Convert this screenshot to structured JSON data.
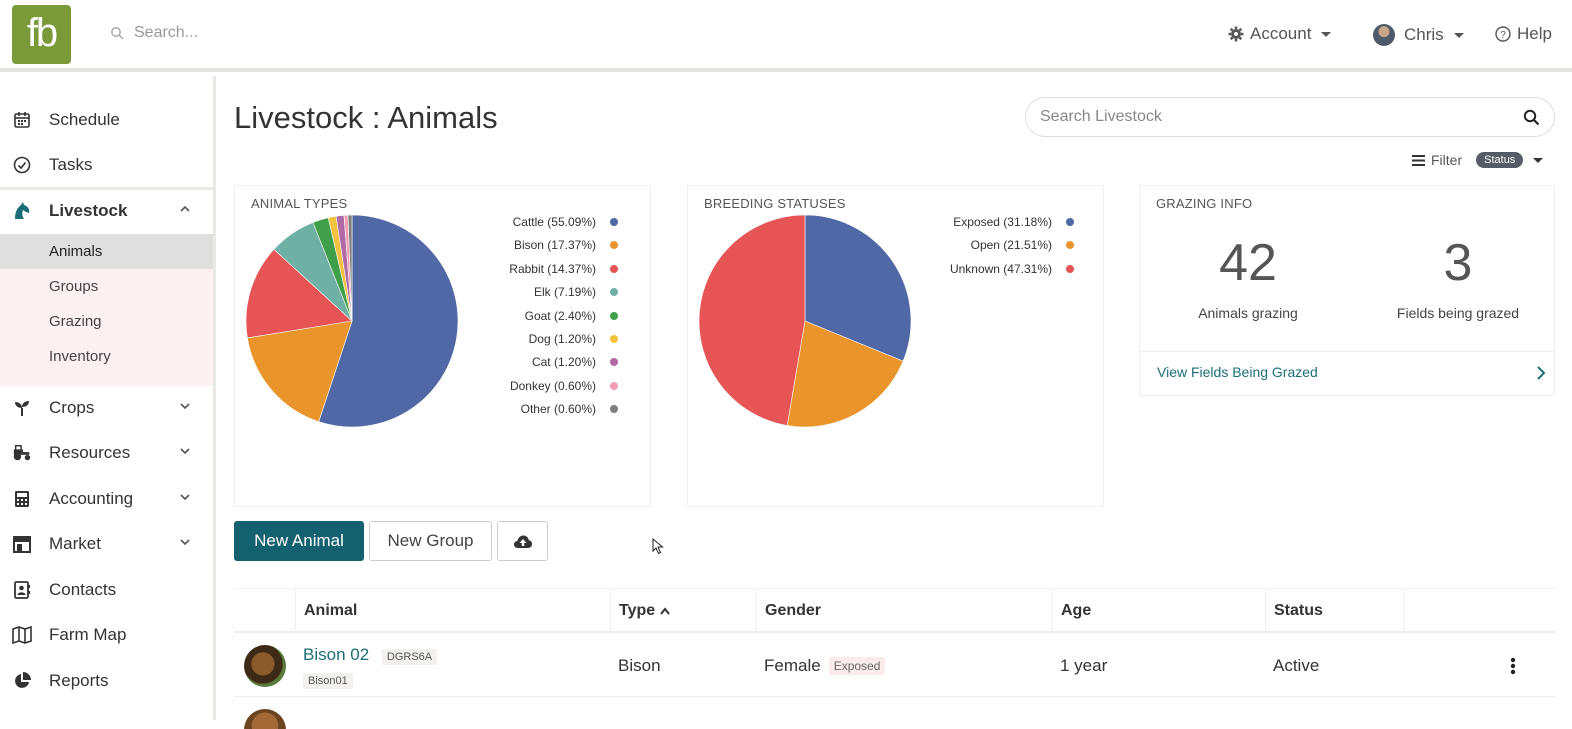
{
  "brand": {
    "logo_text": "fb",
    "accent": "#7a9a3a"
  },
  "topbar": {
    "search_placeholder": "Search...",
    "account_label": "Account",
    "user_label": "Chris",
    "help_label": "Help"
  },
  "sidebar": {
    "items": [
      {
        "label": "Schedule",
        "icon": "calendar-icon"
      },
      {
        "label": "Tasks",
        "icon": "check-circle-icon"
      },
      {
        "label": "Livestock",
        "icon": "horse-head-icon"
      },
      {
        "label": "Crops",
        "icon": "seedling-icon"
      },
      {
        "label": "Resources",
        "icon": "tractor-icon"
      },
      {
        "label": "Accounting",
        "icon": "calculator-icon"
      },
      {
        "label": "Market",
        "icon": "store-icon"
      },
      {
        "label": "Contacts",
        "icon": "address-book-icon"
      },
      {
        "label": "Farm Map",
        "icon": "map-icon"
      },
      {
        "label": "Reports",
        "icon": "pie-chart-icon"
      }
    ],
    "livestock_sub": [
      "Animals",
      "Groups",
      "Grazing",
      "Inventory"
    ]
  },
  "page": {
    "title": "Livestock : Animals",
    "search_placeholder": "Search Livestock",
    "filter_label": "Filter",
    "filter_badge": "Status"
  },
  "chart_data": [
    {
      "type": "pie",
      "title": "ANIMAL TYPES",
      "categories": [
        "Cattle",
        "Bison",
        "Rabbit",
        "Elk",
        "Goat",
        "Dog",
        "Cat",
        "Donkey",
        "Other"
      ],
      "values": [
        55.09,
        17.37,
        14.37,
        7.19,
        2.4,
        1.2,
        1.2,
        0.6,
        0.6
      ],
      "labels": [
        "Cattle (55.09%)",
        "Bison (17.37%)",
        "Rabbit (14.37%)",
        "Elk (7.19%)",
        "Goat (2.40%)",
        "Dog (1.20%)",
        "Cat (1.20%)",
        "Donkey (0.60%)",
        "Other (0.60%)"
      ],
      "colors": [
        "#5069a6",
        "#e9952c",
        "#e65456",
        "#6fb0a4",
        "#3f9f4a",
        "#f2c13e",
        "#b06aa6",
        "#f29db3",
        "#7d7d7d"
      ],
      "legend": "right"
    },
    {
      "type": "pie",
      "title": "BREEDING STATUSES",
      "categories": [
        "Exposed",
        "Open",
        "Unknown"
      ],
      "values": [
        31.18,
        21.51,
        47.31
      ],
      "labels": [
        "Exposed (31.18%)",
        "Open (21.51%)",
        "Unknown (47.31%)"
      ],
      "colors": [
        "#5069a6",
        "#e9952c",
        "#e65456"
      ],
      "legend": "right"
    }
  ],
  "grazing": {
    "title": "GRAZING INFO",
    "animals_grazing": "42",
    "animals_grazing_label": "Animals grazing",
    "fields_grazed": "3",
    "fields_grazed_label": "Fields being grazed",
    "link_label": "View Fields Being Grazed"
  },
  "actions": {
    "new_animal": "New Animal",
    "new_group": "New Group"
  },
  "table": {
    "headers": [
      "Animal",
      "Type",
      "Gender",
      "Age",
      "Status"
    ],
    "rows": [
      {
        "name": "Bison 02",
        "tag": "DGRS6A",
        "sub_tag": "Bison01",
        "type": "Bison",
        "gender": "Female",
        "gender_tag": "Exposed",
        "age": "1 year",
        "status": "Active"
      }
    ]
  }
}
